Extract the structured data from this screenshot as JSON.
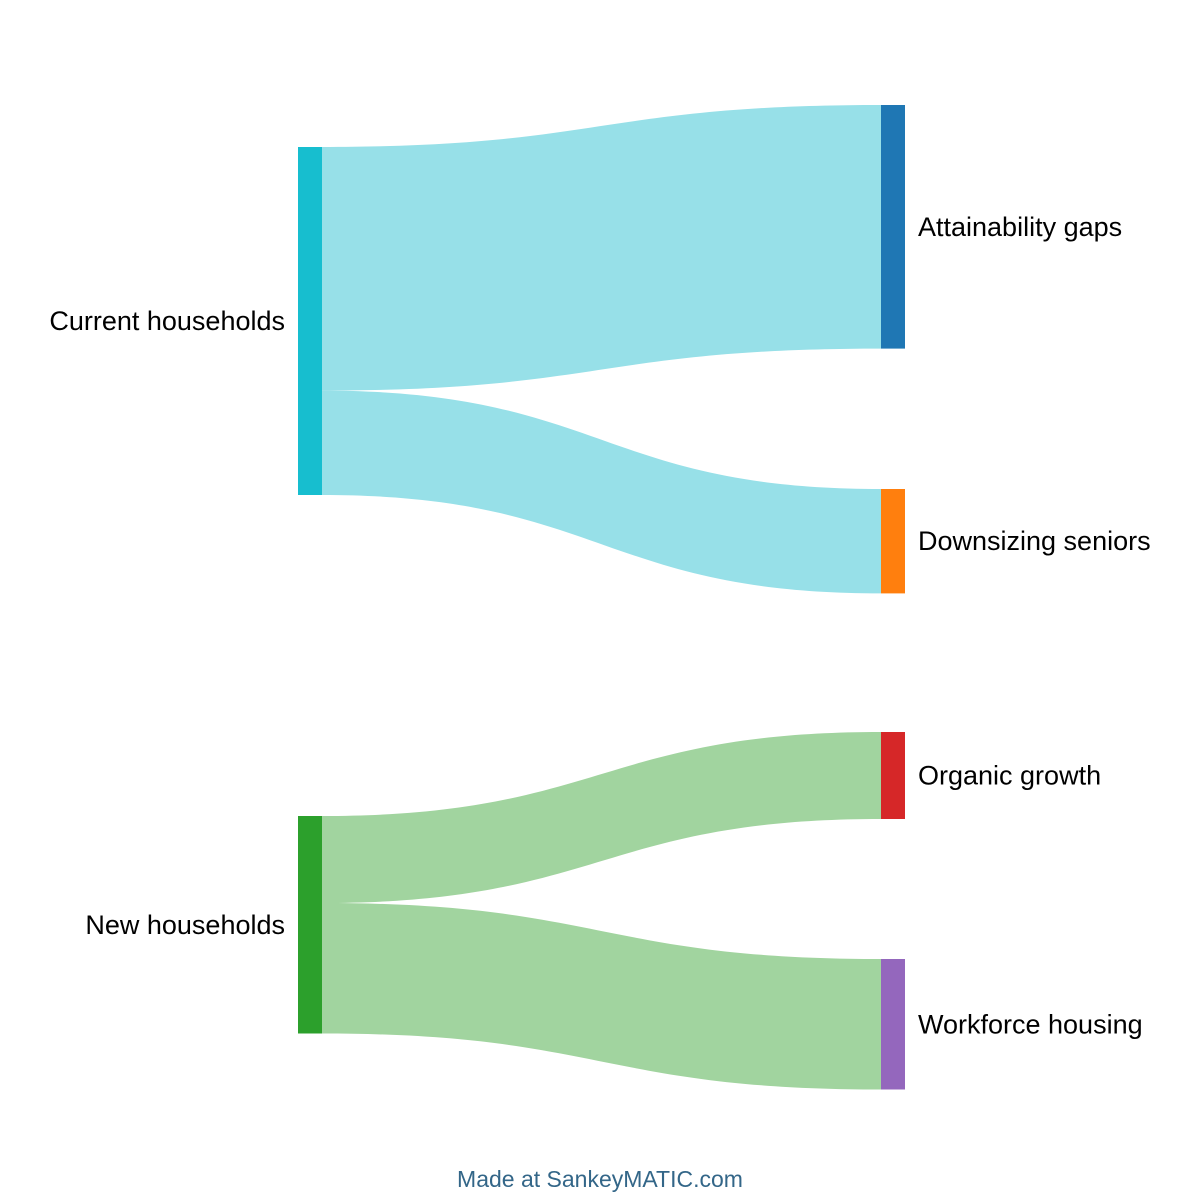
{
  "chart_data": {
    "type": "sankey",
    "nodes": [
      {
        "id": "current",
        "label": "Current households",
        "color": "#17becf",
        "column": 0
      },
      {
        "id": "new",
        "label": "New households",
        "color": "#2ca02c",
        "column": 0
      },
      {
        "id": "attain",
        "label": "Attainability gaps",
        "color": "#1f77b4",
        "column": 1
      },
      {
        "id": "downsize",
        "label": "Downsizing seniors",
        "color": "#ff7f0e",
        "column": 1
      },
      {
        "id": "organic",
        "label": "Organic growth",
        "color": "#d62728",
        "column": 1
      },
      {
        "id": "workforce",
        "label": "Workforce housing",
        "color": "#9467bd",
        "column": 1
      }
    ],
    "links": [
      {
        "source": "current",
        "target": "attain",
        "value": 7.0
      },
      {
        "source": "current",
        "target": "downsize",
        "value": 3.0
      },
      {
        "source": "new",
        "target": "organic",
        "value": 2.5
      },
      {
        "source": "new",
        "target": "workforce",
        "value": 3.75
      }
    ],
    "link_colors": {
      "current": "#97e0e8",
      "new": "#a1d49f"
    }
  },
  "footer": {
    "credit": "Made at SankeyMATIC.com"
  }
}
